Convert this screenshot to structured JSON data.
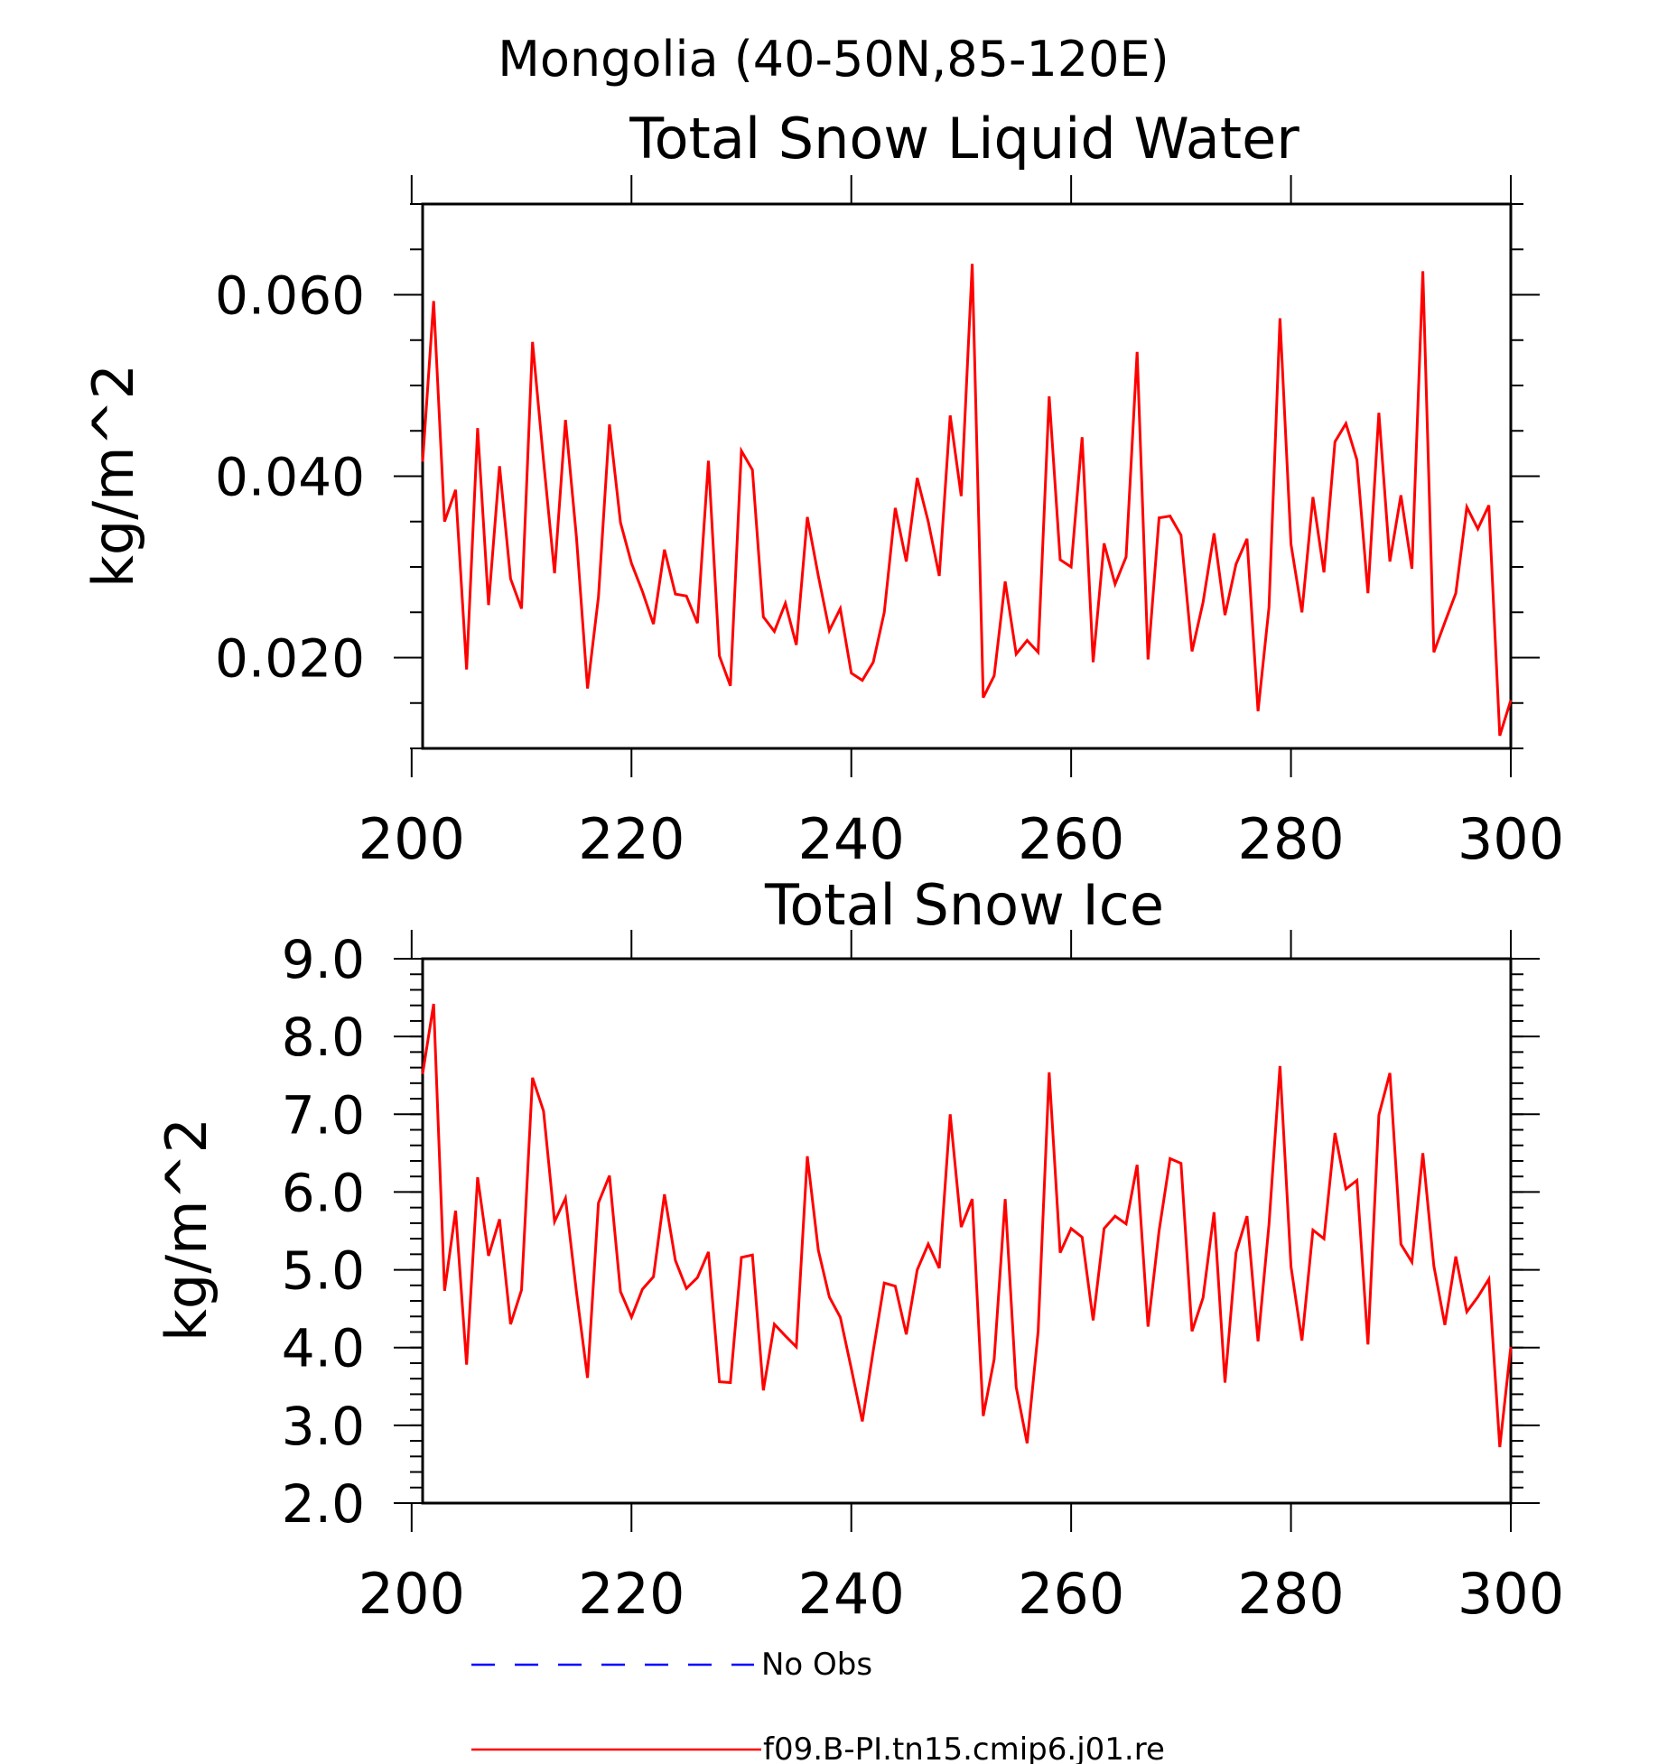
{
  "figure_title": "Mongolia (40-50N,85-120E)",
  "colors": {
    "model_line": "#ff0000",
    "obs_line": "#0000ff",
    "axis": "#000000"
  },
  "legend": {
    "obs_label": "No Obs",
    "model_label": "f09.B-PI.tn15.cmip6.j01.re"
  },
  "chart_data": [
    {
      "type": "line",
      "title": "Total Snow Liquid Water",
      "xlabel": "",
      "ylabel": "kg/m^2",
      "xlim": [
        201,
        300
      ],
      "ylim": [
        0.01,
        0.07
      ],
      "xticks": [
        200,
        220,
        240,
        260,
        280,
        300
      ],
      "xtick_labels": [
        "200",
        "220",
        "240",
        "260",
        "280",
        "300"
      ],
      "yticks": [
        0.02,
        0.04,
        0.06
      ],
      "ytick_labels": [
        "0.020",
        "0.040",
        "0.060"
      ],
      "grid": false,
      "x": [
        201,
        202,
        203,
        204,
        205,
        206,
        207,
        208,
        209,
        210,
        211,
        212,
        213,
        214,
        215,
        216,
        217,
        218,
        219,
        220,
        221,
        222,
        223,
        224,
        225,
        226,
        227,
        228,
        229,
        230,
        231,
        232,
        233,
        234,
        235,
        236,
        237,
        238,
        239,
        240,
        241,
        242,
        243,
        244,
        245,
        246,
        247,
        248,
        249,
        250,
        251,
        252,
        253,
        254,
        255,
        256,
        257,
        258,
        259,
        260,
        261,
        262,
        263,
        264,
        265,
        266,
        267,
        268,
        269,
        270,
        271,
        272,
        273,
        274,
        275,
        276,
        277,
        278,
        279,
        280,
        281,
        282,
        283,
        284,
        285,
        286,
        287,
        288,
        289,
        290,
        291,
        292,
        293,
        294,
        295,
        296,
        297,
        298,
        299,
        300
      ],
      "series": [
        {
          "name": "f09.B-PI.tn15.cmip6.j01.re",
          "values": [
            0.0416,
            0.0593,
            0.035,
            0.0385,
            0.0187,
            0.0453,
            0.0258,
            0.0411,
            0.0287,
            0.0254,
            0.0548,
            0.0417,
            0.0293,
            0.0462,
            0.0332,
            0.0166,
            0.0267,
            0.0457,
            0.0349,
            0.0304,
            0.0273,
            0.0237,
            0.0319,
            0.027,
            0.0268,
            0.0238,
            0.0417,
            0.0202,
            0.0169,
            0.0428,
            0.0407,
            0.0245,
            0.0229,
            0.026,
            0.0214,
            0.0355,
            0.029,
            0.023,
            0.0254,
            0.0183,
            0.0175,
            0.0195,
            0.025,
            0.0365,
            0.0306,
            0.0398,
            0.035,
            0.029,
            0.0467,
            0.0378,
            0.0634,
            0.0156,
            0.018,
            0.0284,
            0.0204,
            0.0219,
            0.0206,
            0.0488,
            0.0308,
            0.03,
            0.0443,
            0.0195,
            0.0326,
            0.0281,
            0.0311,
            0.0537,
            0.0198,
            0.0354,
            0.0356,
            0.0335,
            0.0207,
            0.0261,
            0.0337,
            0.0247,
            0.0303,
            0.0331,
            0.0141,
            0.0255,
            0.0574,
            0.0325,
            0.025,
            0.0377,
            0.0294,
            0.0438,
            0.0458,
            0.0418,
            0.0271,
            0.047,
            0.0306,
            0.0379,
            0.0298,
            0.0626,
            0.0206,
            0.0239,
            0.0271,
            0.0366,
            0.0342,
            0.0368,
            0.0114,
            0.0153
          ]
        }
      ]
    },
    {
      "type": "line",
      "title": "Total Snow Ice",
      "xlabel": "",
      "ylabel": "kg/m^2",
      "xlim": [
        201,
        300
      ],
      "ylim": [
        2.0,
        9.0
      ],
      "xticks": [
        200,
        220,
        240,
        260,
        280,
        300
      ],
      "xtick_labels": [
        "200",
        "220",
        "240",
        "260",
        "280",
        "300"
      ],
      "yticks": [
        2.0,
        3.0,
        4.0,
        5.0,
        6.0,
        7.0,
        8.0,
        9.0
      ],
      "ytick_labels": [
        "2.0",
        "3.0",
        "4.0",
        "5.0",
        "6.0",
        "7.0",
        "8.0",
        "9.0"
      ],
      "grid": false,
      "x": [
        201,
        202,
        203,
        204,
        205,
        206,
        207,
        208,
        209,
        210,
        211,
        212,
        213,
        214,
        215,
        216,
        217,
        218,
        219,
        220,
        221,
        222,
        223,
        224,
        225,
        226,
        227,
        228,
        229,
        230,
        231,
        232,
        233,
        234,
        235,
        236,
        237,
        238,
        239,
        240,
        241,
        242,
        243,
        244,
        245,
        246,
        247,
        248,
        249,
        250,
        251,
        252,
        253,
        254,
        255,
        256,
        257,
        258,
        259,
        260,
        261,
        262,
        263,
        264,
        265,
        266,
        267,
        268,
        269,
        270,
        271,
        272,
        273,
        274,
        275,
        276,
        277,
        278,
        279,
        280,
        281,
        282,
        283,
        284,
        285,
        286,
        287,
        288,
        289,
        290,
        291,
        292,
        293,
        294,
        295,
        296,
        297,
        298,
        299,
        300
      ],
      "series": [
        {
          "name": "f09.B-PI.tn15.cmip6.j01.re",
          "values": [
            7.52,
            8.42,
            4.73,
            5.76,
            3.78,
            6.19,
            5.18,
            5.65,
            4.3,
            4.74,
            7.47,
            7.04,
            5.62,
            5.92,
            4.71,
            3.61,
            5.86,
            6.21,
            4.72,
            4.39,
            4.75,
            4.91,
            5.97,
            5.12,
            4.76,
            4.9,
            5.23,
            3.56,
            3.55,
            5.16,
            5.19,
            3.45,
            4.3,
            4.15,
            4.01,
            6.46,
            5.25,
            4.65,
            4.39,
            3.73,
            3.05,
            3.96,
            4.83,
            4.79,
            4.17,
            5.0,
            5.33,
            5.02,
            7.0,
            5.55,
            5.91,
            3.12,
            3.85,
            5.91,
            3.49,
            2.77,
            4.21,
            7.54,
            5.22,
            5.53,
            5.42,
            4.35,
            5.53,
            5.69,
            5.59,
            6.35,
            4.27,
            5.5,
            6.43,
            6.37,
            4.21,
            4.64,
            5.74,
            3.55,
            5.22,
            5.69,
            4.08,
            5.58,
            7.62,
            5.04,
            4.09,
            5.51,
            5.4,
            6.76,
            6.04,
            6.15,
            4.04,
            6.99,
            7.53,
            5.33,
            5.1,
            6.5,
            5.05,
            4.29,
            5.17,
            4.46,
            4.65,
            4.88,
            2.72,
            4.01
          ]
        }
      ]
    }
  ]
}
